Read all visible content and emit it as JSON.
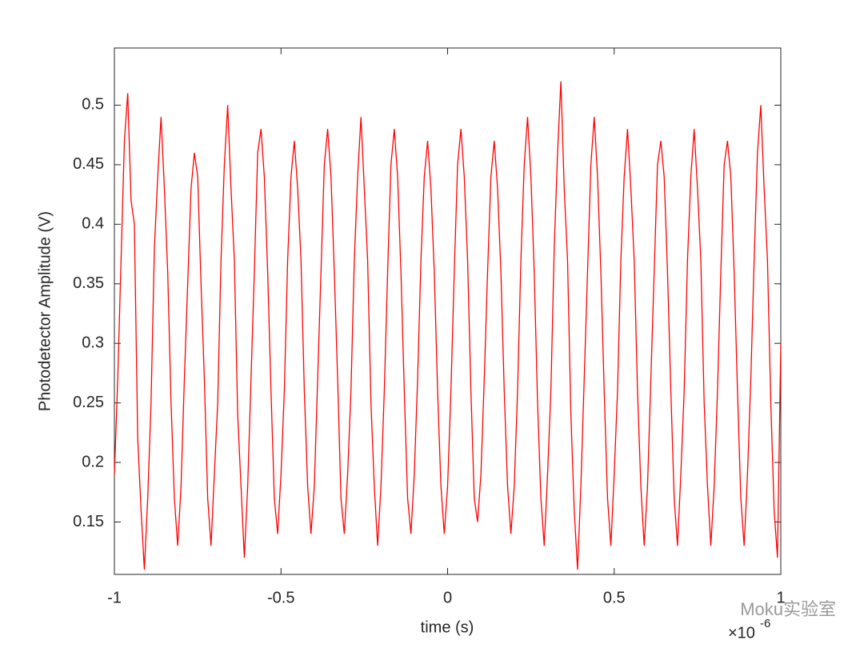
{
  "chart_data": {
    "type": "line",
    "x_label": "time (s)",
    "y_label": "Photodetector Amplitude (V)",
    "x_exponent_base": "×10",
    "x_exponent": "-6",
    "watermark": "Moku实验室",
    "xlim": [
      -1,
      1
    ],
    "xticks": [
      -1,
      -0.5,
      0,
      0.5,
      1
    ],
    "ylim": [
      0.106,
      0.548
    ],
    "yticks": [
      0.15,
      0.2,
      0.25,
      0.3,
      0.35,
      0.4,
      0.45,
      0.5
    ],
    "grid": false,
    "x": [
      -1,
      -0.99,
      -0.98,
      -0.97,
      -0.96,
      -0.95,
      -0.94,
      -0.93,
      -0.92,
      -0.91,
      -0.9,
      -0.89,
      -0.88,
      -0.87,
      -0.86,
      -0.85,
      -0.84,
      -0.83,
      -0.82,
      -0.81,
      -0.8,
      -0.79,
      -0.78,
      -0.77,
      -0.76,
      -0.75,
      -0.74,
      -0.73,
      -0.72,
      -0.71,
      -0.7,
      -0.69,
      -0.68,
      -0.67,
      -0.66,
      -0.65,
      -0.64,
      -0.63,
      -0.62,
      -0.61,
      -0.6,
      -0.59,
      -0.58,
      -0.57,
      -0.56,
      -0.55,
      -0.54,
      -0.53,
      -0.52,
      -0.51,
      -0.5,
      -0.49,
      -0.48,
      -0.47,
      -0.46,
      -0.45,
      -0.44,
      -0.43,
      -0.42,
      -0.41,
      -0.4,
      -0.39,
      -0.38,
      -0.37,
      -0.36,
      -0.35,
      -0.34,
      -0.33,
      -0.32,
      -0.31,
      -0.3,
      -0.29,
      -0.28,
      -0.27,
      -0.26,
      -0.25,
      -0.24,
      -0.23,
      -0.22,
      -0.21,
      -0.2,
      -0.19,
      -0.18,
      -0.17,
      -0.16,
      -0.15,
      -0.14,
      -0.13,
      -0.12,
      -0.11,
      -0.1,
      -0.09,
      -0.08,
      -0.07,
      -0.06,
      -0.05,
      -0.04,
      -0.03,
      -0.02,
      -0.01,
      0,
      0.01,
      0.02,
      0.03,
      0.04,
      0.05,
      0.06,
      0.07,
      0.08,
      0.09,
      0.1,
      0.11,
      0.12,
      0.13,
      0.14,
      0.15,
      0.16,
      0.17,
      0.18,
      0.19,
      0.2,
      0.21,
      0.22,
      0.23,
      0.24,
      0.25,
      0.26,
      0.27,
      0.28,
      0.29,
      0.3,
      0.31,
      0.32,
      0.33,
      0.34,
      0.35,
      0.36,
      0.37,
      0.38,
      0.39,
      0.4,
      0.41,
      0.42,
      0.43,
      0.44,
      0.45,
      0.46,
      0.47,
      0.48,
      0.49,
      0.5,
      0.51,
      0.52,
      0.53,
      0.54,
      0.55,
      0.56,
      0.57,
      0.58,
      0.59,
      0.6,
      0.61,
      0.62,
      0.63,
      0.64,
      0.65,
      0.66,
      0.67,
      0.68,
      0.69,
      0.7,
      0.71,
      0.72,
      0.73,
      0.74,
      0.75,
      0.76,
      0.77,
      0.78,
      0.79,
      0.8,
      0.81,
      0.82,
      0.83,
      0.84,
      0.85,
      0.86,
      0.87,
      0.88,
      0.89,
      0.9,
      0.91,
      0.92,
      0.93,
      0.94,
      0.95,
      0.96,
      0.97,
      0.98,
      0.99,
      1
    ],
    "series": [
      {
        "color": "#ff0000",
        "values": [
          0.19,
          0.27,
          0.37,
          0.47,
          0.51,
          0.42,
          0.4,
          0.22,
          0.16,
          0.11,
          0.17,
          0.25,
          0.38,
          0.44,
          0.49,
          0.43,
          0.36,
          0.25,
          0.17,
          0.13,
          0.18,
          0.27,
          0.35,
          0.43,
          0.46,
          0.44,
          0.35,
          0.27,
          0.17,
          0.13,
          0.19,
          0.25,
          0.37,
          0.45,
          0.5,
          0.43,
          0.37,
          0.24,
          0.18,
          0.12,
          0.18,
          0.27,
          0.36,
          0.46,
          0.48,
          0.44,
          0.36,
          0.26,
          0.17,
          0.14,
          0.19,
          0.26,
          0.37,
          0.44,
          0.47,
          0.43,
          0.37,
          0.26,
          0.18,
          0.14,
          0.18,
          0.27,
          0.36,
          0.45,
          0.48,
          0.44,
          0.36,
          0.27,
          0.17,
          0.14,
          0.19,
          0.26,
          0.37,
          0.44,
          0.49,
          0.43,
          0.37,
          0.25,
          0.18,
          0.13,
          0.18,
          0.26,
          0.36,
          0.45,
          0.48,
          0.44,
          0.36,
          0.26,
          0.17,
          0.14,
          0.19,
          0.27,
          0.37,
          0.44,
          0.47,
          0.43,
          0.36,
          0.26,
          0.18,
          0.14,
          0.18,
          0.26,
          0.36,
          0.45,
          0.48,
          0.44,
          0.37,
          0.26,
          0.17,
          0.15,
          0.19,
          0.27,
          0.36,
          0.44,
          0.47,
          0.43,
          0.36,
          0.26,
          0.18,
          0.14,
          0.18,
          0.26,
          0.37,
          0.45,
          0.49,
          0.44,
          0.36,
          0.25,
          0.17,
          0.13,
          0.19,
          0.26,
          0.38,
          0.46,
          0.52,
          0.43,
          0.37,
          0.24,
          0.16,
          0.11,
          0.18,
          0.27,
          0.36,
          0.45,
          0.49,
          0.44,
          0.36,
          0.26,
          0.17,
          0.13,
          0.19,
          0.26,
          0.37,
          0.44,
          0.48,
          0.43,
          0.37,
          0.26,
          0.18,
          0.13,
          0.18,
          0.27,
          0.36,
          0.45,
          0.47,
          0.44,
          0.36,
          0.26,
          0.17,
          0.13,
          0.19,
          0.26,
          0.37,
          0.44,
          0.48,
          0.43,
          0.37,
          0.25,
          0.18,
          0.13,
          0.18,
          0.26,
          0.36,
          0.45,
          0.47,
          0.44,
          0.36,
          0.26,
          0.17,
          0.13,
          0.19,
          0.27,
          0.37,
          0.46,
          0.5,
          0.43,
          0.37,
          0.25,
          0.16,
          0.12,
          0.3
        ]
      }
    ]
  }
}
